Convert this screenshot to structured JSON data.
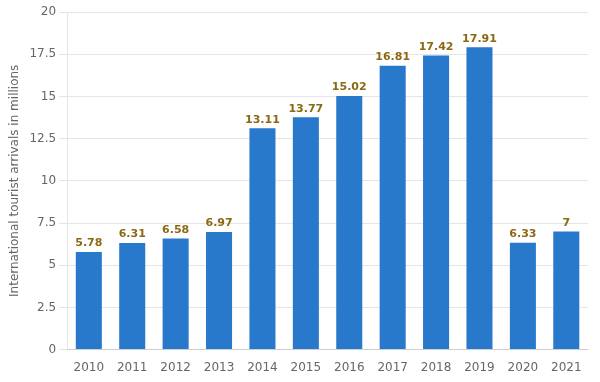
{
  "chart_data": {
    "type": "bar",
    "categories": [
      "2010",
      "2011",
      "2012",
      "2013",
      "2014",
      "2015",
      "2016",
      "2017",
      "2018",
      "2019",
      "2020",
      "2021"
    ],
    "values": [
      5.78,
      6.31,
      6.58,
      6.97,
      13.11,
      13.77,
      15.02,
      16.81,
      17.42,
      17.91,
      6.33,
      7.0
    ],
    "color": "#2878CC",
    "ylabel": "International tourist arrivals in millions",
    "ylim": [
      0,
      20
    ],
    "yticks": [
      0,
      2.5,
      5,
      7.5,
      10,
      12.5,
      15,
      17.5,
      20
    ],
    "grid": true,
    "data_labels": true
  }
}
